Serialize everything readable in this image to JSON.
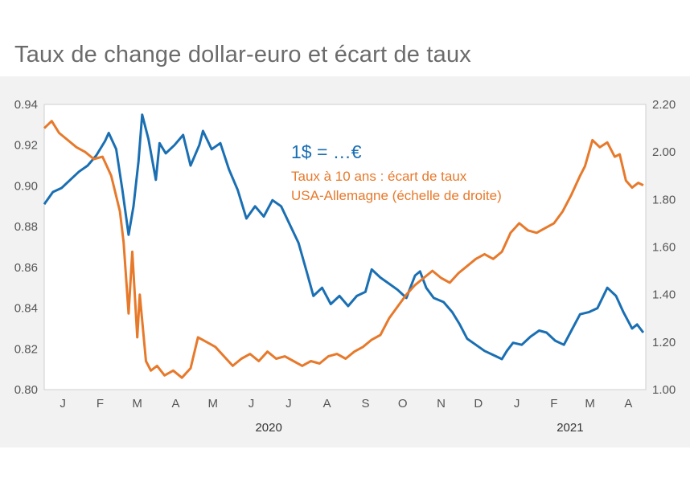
{
  "title": "Taux de change dollar-euro et écart de taux",
  "colors": {
    "blue": "#1a6fb3",
    "orange": "#e7792b",
    "panel": "#f2f2f2",
    "plot": "#ffffff"
  },
  "chart_data": {
    "type": "line",
    "title": "Taux de change dollar-euro et écart de taux",
    "legend_placement": "top-right inside plot",
    "grid": false,
    "x_range": [
      "2020-01-01",
      "2021-04-30"
    ],
    "month_labels": [
      "J",
      "F",
      "M",
      "A",
      "M",
      "J",
      "J",
      "A",
      "S",
      "O",
      "N",
      "D",
      "J",
      "F",
      "M",
      "A"
    ],
    "year_labels": [
      "2020",
      "2021"
    ],
    "y_left": {
      "range": [
        0.8,
        0.94
      ],
      "ticks": [
        "0.80",
        "0.82",
        "0.84",
        "0.86",
        "0.88",
        "0.90",
        "0.92",
        "0.94"
      ]
    },
    "y_right": {
      "range": [
        1.0,
        2.2
      ],
      "ticks": [
        "1.00",
        "1.20",
        "1.40",
        "1.60",
        "1.80",
        "2.00",
        "2.20"
      ]
    },
    "series": [
      {
        "name": "1$ = …€",
        "axis": "left",
        "color": "#1a6fb3",
        "points": [
          [
            "2020-01-01",
            0.891
          ],
          [
            "2020-01-08",
            0.897
          ],
          [
            "2020-01-15",
            0.899
          ],
          [
            "2020-01-22",
            0.903
          ],
          [
            "2020-01-29",
            0.907
          ],
          [
            "2020-02-05",
            0.91
          ],
          [
            "2020-02-12",
            0.915
          ],
          [
            "2020-02-19",
            0.922
          ],
          [
            "2020-02-22",
            0.926
          ],
          [
            "2020-02-28",
            0.918
          ],
          [
            "2020-03-04",
            0.898
          ],
          [
            "2020-03-09",
            0.876
          ],
          [
            "2020-03-13",
            0.89
          ],
          [
            "2020-03-17",
            0.912
          ],
          [
            "2020-03-20",
            0.935
          ],
          [
            "2020-03-25",
            0.923
          ],
          [
            "2020-03-31",
            0.903
          ],
          [
            "2020-04-03",
            0.921
          ],
          [
            "2020-04-08",
            0.916
          ],
          [
            "2020-04-15",
            0.92
          ],
          [
            "2020-04-22",
            0.925
          ],
          [
            "2020-04-28",
            0.91
          ],
          [
            "2020-05-05",
            0.92
          ],
          [
            "2020-05-08",
            0.927
          ],
          [
            "2020-05-15",
            0.918
          ],
          [
            "2020-05-22",
            0.921
          ],
          [
            "2020-05-29",
            0.908
          ],
          [
            "2020-06-05",
            0.898
          ],
          [
            "2020-06-12",
            0.884
          ],
          [
            "2020-06-19",
            0.89
          ],
          [
            "2020-06-26",
            0.885
          ],
          [
            "2020-07-03",
            0.893
          ],
          [
            "2020-07-10",
            0.89
          ],
          [
            "2020-07-17",
            0.881
          ],
          [
            "2020-07-24",
            0.872
          ],
          [
            "2020-07-31",
            0.857
          ],
          [
            "2020-08-05",
            0.846
          ],
          [
            "2020-08-12",
            0.85
          ],
          [
            "2020-08-19",
            0.842
          ],
          [
            "2020-08-26",
            0.846
          ],
          [
            "2020-09-02",
            0.841
          ],
          [
            "2020-09-09",
            0.846
          ],
          [
            "2020-09-16",
            0.848
          ],
          [
            "2020-09-21",
            0.859
          ],
          [
            "2020-09-28",
            0.855
          ],
          [
            "2020-10-05",
            0.852
          ],
          [
            "2020-10-12",
            0.849
          ],
          [
            "2020-10-19",
            0.845
          ],
          [
            "2020-10-26",
            0.856
          ],
          [
            "2020-10-30",
            0.858
          ],
          [
            "2020-11-04",
            0.85
          ],
          [
            "2020-11-10",
            0.845
          ],
          [
            "2020-11-18",
            0.843
          ],
          [
            "2020-11-25",
            0.838
          ],
          [
            "2020-12-01",
            0.832
          ],
          [
            "2020-12-07",
            0.825
          ],
          [
            "2020-12-14",
            0.822
          ],
          [
            "2020-12-21",
            0.819
          ],
          [
            "2020-12-28",
            0.817
          ],
          [
            "2021-01-04",
            0.815
          ],
          [
            "2021-01-08",
            0.819
          ],
          [
            "2021-01-13",
            0.823
          ],
          [
            "2021-01-20",
            0.822
          ],
          [
            "2021-01-27",
            0.826
          ],
          [
            "2021-02-03",
            0.829
          ],
          [
            "2021-02-09",
            0.828
          ],
          [
            "2021-02-16",
            0.824
          ],
          [
            "2021-02-23",
            0.822
          ],
          [
            "2021-03-01",
            0.829
          ],
          [
            "2021-03-08",
            0.837
          ],
          [
            "2021-03-15",
            0.838
          ],
          [
            "2021-03-22",
            0.84
          ],
          [
            "2021-03-30",
            0.85
          ],
          [
            "2021-04-06",
            0.846
          ],
          [
            "2021-04-12",
            0.838
          ],
          [
            "2021-04-19",
            0.83
          ],
          [
            "2021-04-23",
            0.832
          ],
          [
            "2021-04-28",
            0.828
          ]
        ]
      },
      {
        "name": "Taux à 10 ans : écart de taux USA-Allemagne (échelle de droite)",
        "axis": "right",
        "color": "#e7792b",
        "points": [
          [
            "2020-01-01",
            2.1
          ],
          [
            "2020-01-07",
            2.13
          ],
          [
            "2020-01-13",
            2.08
          ],
          [
            "2020-01-20",
            2.05
          ],
          [
            "2020-01-27",
            2.02
          ],
          [
            "2020-02-03",
            2.0
          ],
          [
            "2020-02-10",
            1.97
          ],
          [
            "2020-02-17",
            1.98
          ],
          [
            "2020-02-24",
            1.9
          ],
          [
            "2020-03-02",
            1.75
          ],
          [
            "2020-03-05",
            1.62
          ],
          [
            "2020-03-09",
            1.32
          ],
          [
            "2020-03-12",
            1.58
          ],
          [
            "2020-03-16",
            1.22
          ],
          [
            "2020-03-18",
            1.4
          ],
          [
            "2020-03-23",
            1.12
          ],
          [
            "2020-03-27",
            1.08
          ],
          [
            "2020-04-01",
            1.1
          ],
          [
            "2020-04-07",
            1.06
          ],
          [
            "2020-04-14",
            1.08
          ],
          [
            "2020-04-21",
            1.05
          ],
          [
            "2020-04-28",
            1.09
          ],
          [
            "2020-05-04",
            1.22
          ],
          [
            "2020-05-11",
            1.2
          ],
          [
            "2020-05-18",
            1.18
          ],
          [
            "2020-05-25",
            1.14
          ],
          [
            "2020-06-01",
            1.1
          ],
          [
            "2020-06-08",
            1.13
          ],
          [
            "2020-06-15",
            1.15
          ],
          [
            "2020-06-22",
            1.12
          ],
          [
            "2020-06-29",
            1.16
          ],
          [
            "2020-07-06",
            1.13
          ],
          [
            "2020-07-13",
            1.14
          ],
          [
            "2020-07-20",
            1.12
          ],
          [
            "2020-07-27",
            1.1
          ],
          [
            "2020-08-03",
            1.12
          ],
          [
            "2020-08-10",
            1.11
          ],
          [
            "2020-08-17",
            1.14
          ],
          [
            "2020-08-24",
            1.15
          ],
          [
            "2020-08-31",
            1.13
          ],
          [
            "2020-09-07",
            1.16
          ],
          [
            "2020-09-14",
            1.18
          ],
          [
            "2020-09-21",
            1.21
          ],
          [
            "2020-09-28",
            1.23
          ],
          [
            "2020-10-05",
            1.3
          ],
          [
            "2020-10-12",
            1.35
          ],
          [
            "2020-10-19",
            1.4
          ],
          [
            "2020-10-26",
            1.44
          ],
          [
            "2020-11-02",
            1.47
          ],
          [
            "2020-11-09",
            1.5
          ],
          [
            "2020-11-16",
            1.47
          ],
          [
            "2020-11-23",
            1.45
          ],
          [
            "2020-11-30",
            1.49
          ],
          [
            "2020-12-07",
            1.52
          ],
          [
            "2020-12-14",
            1.55
          ],
          [
            "2020-12-21",
            1.57
          ],
          [
            "2020-12-28",
            1.55
          ],
          [
            "2021-01-04",
            1.58
          ],
          [
            "2021-01-11",
            1.66
          ],
          [
            "2021-01-18",
            1.7
          ],
          [
            "2021-01-25",
            1.67
          ],
          [
            "2021-02-01",
            1.66
          ],
          [
            "2021-02-08",
            1.68
          ],
          [
            "2021-02-15",
            1.7
          ],
          [
            "2021-02-22",
            1.75
          ],
          [
            "2021-03-01",
            1.82
          ],
          [
            "2021-03-08",
            1.9
          ],
          [
            "2021-03-12",
            1.94
          ],
          [
            "2021-03-18",
            2.05
          ],
          [
            "2021-03-24",
            2.02
          ],
          [
            "2021-03-30",
            2.04
          ],
          [
            "2021-04-05",
            1.98
          ],
          [
            "2021-04-09",
            1.99
          ],
          [
            "2021-04-14",
            1.88
          ],
          [
            "2021-04-19",
            1.85
          ],
          [
            "2021-04-24",
            1.87
          ],
          [
            "2021-04-28",
            1.86
          ]
        ]
      }
    ]
  }
}
